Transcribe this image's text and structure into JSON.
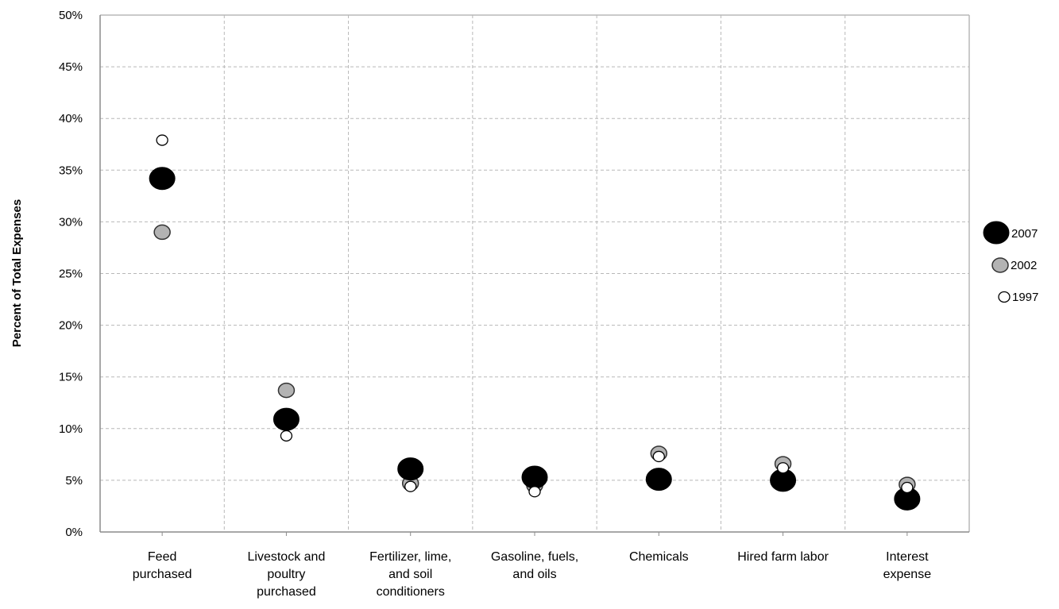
{
  "chart_data": {
    "type": "scatter",
    "title": "",
    "xlabel": "",
    "ylabel": "Percent of Total Expenses",
    "ylim": [
      0,
      50
    ],
    "yticks": [
      "0%",
      "5%",
      "10%",
      "15%",
      "20%",
      "25%",
      "30%",
      "35%",
      "40%",
      "45%",
      "50%"
    ],
    "grid": true,
    "legend_position": "right",
    "categories": [
      [
        "Feed",
        "purchased"
      ],
      [
        "Livestock and",
        "poultry",
        "purchased"
      ],
      [
        "Fertilizer, lime,",
        "and soil",
        "conditioners"
      ],
      [
        "Gasoline, fuels,",
        "and oils"
      ],
      [
        "Chemicals"
      ],
      [
        "Hired farm labor"
      ],
      [
        "Interest",
        "expense"
      ]
    ],
    "series": [
      {
        "name": "2007",
        "color": "#000000",
        "marker": "large-filled-circle",
        "values": [
          34.2,
          10.9,
          6.1,
          5.3,
          5.1,
          5.0,
          3.2
        ]
      },
      {
        "name": "2002",
        "color": "#b3b3b3",
        "marker": "medium-gray-circle",
        "values": [
          29.0,
          13.7,
          4.7,
          4.5,
          7.6,
          6.6,
          4.6
        ]
      },
      {
        "name": "1997",
        "color": "#ffffff",
        "marker": "small-open-circle",
        "values": [
          37.9,
          9.3,
          4.4,
          3.9,
          7.3,
          6.2,
          4.3
        ]
      }
    ]
  }
}
